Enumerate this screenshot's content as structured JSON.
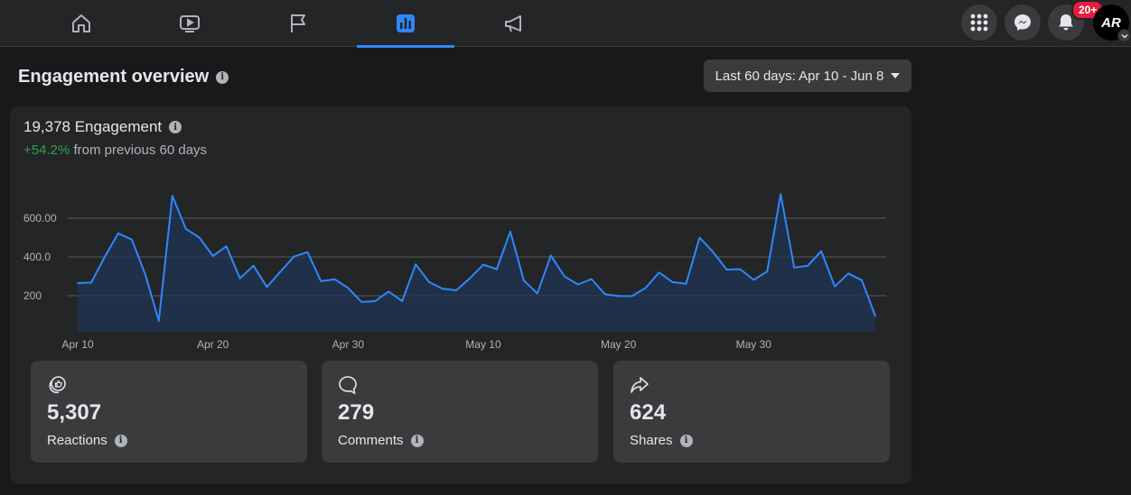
{
  "topbar": {
    "tabs": [
      {
        "icon": "home-icon"
      },
      {
        "icon": "video-icon"
      },
      {
        "icon": "flag-icon"
      },
      {
        "icon": "insights-icon",
        "active": true
      },
      {
        "icon": "megaphone-icon"
      }
    ],
    "notifications_badge": "20+",
    "avatar_text": "AR"
  },
  "header": {
    "title": "Engagement overview",
    "date_range": "Last 60 days: Apr 10 - Jun 8"
  },
  "engagement": {
    "title": "19,378 Engagement",
    "change": "+54.2%",
    "change_suffix": " from previous 60 days"
  },
  "chart_data": {
    "type": "area",
    "ylabels": [
      "600.00",
      "400.0",
      "200"
    ],
    "gridlines": [
      600,
      400,
      200
    ],
    "ylim": [
      60,
      800
    ],
    "x_tick_labels": [
      "Apr 10",
      "Apr 20",
      "Apr 30",
      "May 10",
      "May 20",
      "May 30"
    ],
    "x_tick_indices": [
      0,
      10,
      20,
      30,
      40,
      50
    ],
    "series": [
      {
        "color": "#2d88ff",
        "values": [
          265,
          268,
          400,
          522,
          490,
          310,
          70,
          715,
          545,
          500,
          405,
          455,
          290,
          355,
          245,
          325,
          402,
          425,
          275,
          285,
          240,
          168,
          172,
          222,
          172,
          362,
          270,
          236,
          228,
          290,
          360,
          337,
          531,
          278,
          212,
          408,
          300,
          258,
          286,
          208,
          198,
          198,
          240,
          320,
          270,
          262,
          500,
          425,
          335,
          337,
          282,
          325,
          724,
          345,
          355,
          430,
          248,
          315,
          280,
          95
        ]
      }
    ]
  },
  "stats": [
    {
      "icon": "reactions-icon",
      "value": "5,307",
      "label": "Reactions"
    },
    {
      "icon": "comment-icon",
      "value": "279",
      "label": "Comments"
    },
    {
      "icon": "share-icon",
      "value": "624",
      "label": "Shares"
    }
  ]
}
